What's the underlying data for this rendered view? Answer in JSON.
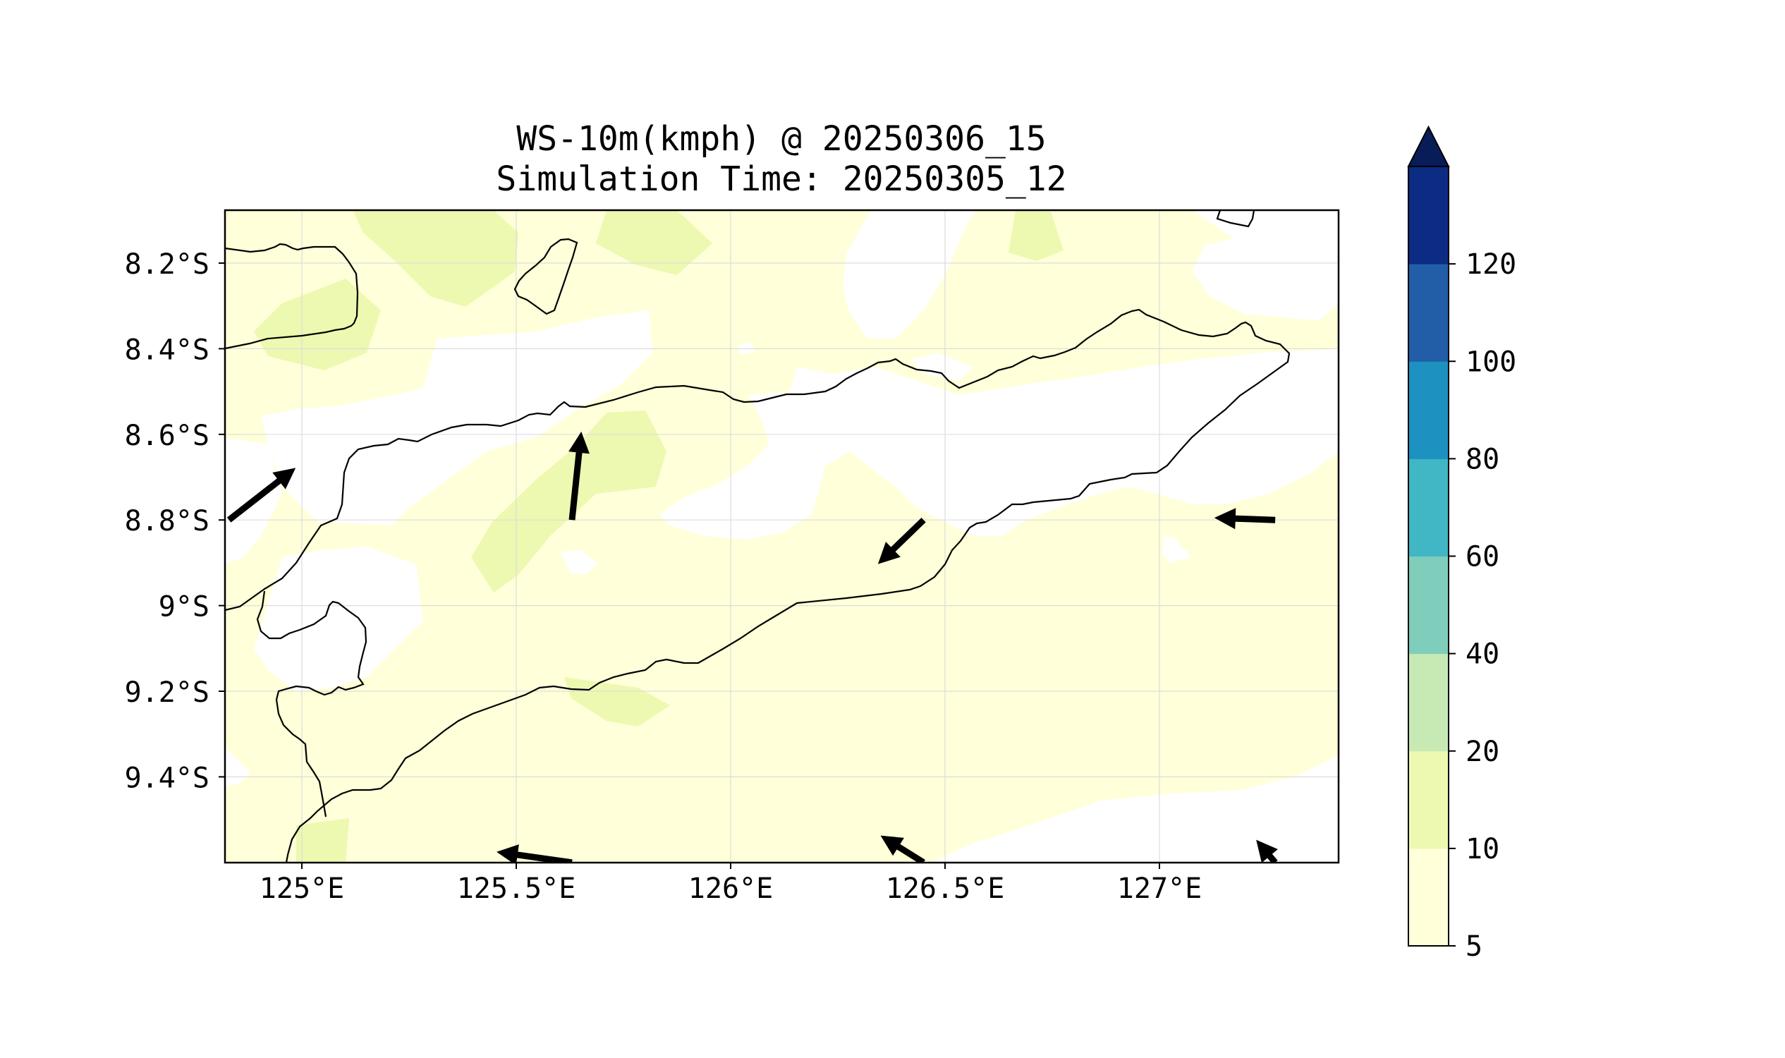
{
  "map": {
    "title_line1": "WS-10m(kmph) @ 20250306_15",
    "title_line2": "Simulation Time: 20250305_12",
    "lat_labels": [
      "8.2°S",
      "8.4°S",
      "8.6°S",
      "8.8°S",
      "9°S",
      "9.2°S",
      "9.4°S"
    ],
    "lon_labels": [
      "125°E",
      "125.5°E",
      "126°E",
      "126.5°E",
      "127°E"
    ],
    "extent": {
      "lon": [
        124.83,
        127.43
      ],
      "lat": [
        -9.6,
        -8.08
      ]
    },
    "gridlines": true
  },
  "colorbar": {
    "tick_labels": [
      "5",
      "10",
      "20",
      "40",
      "60",
      "80",
      "100",
      "120"
    ],
    "levels": [
      5,
      10,
      20,
      40,
      60,
      80,
      100,
      120
    ],
    "colors": [
      "#ffffd9",
      "#edf8b1",
      "#c7e9b4",
      "#7fcdbb",
      "#41b6c4",
      "#1d91c0",
      "#225ea8",
      "#0c2c84"
    ],
    "extend": "max",
    "extend_color": "#081d58"
  },
  "palette": {
    "below_min": "#ffffff",
    "coast": "#000000",
    "arrow": "#000000",
    "grid": "#dddddd"
  }
}
